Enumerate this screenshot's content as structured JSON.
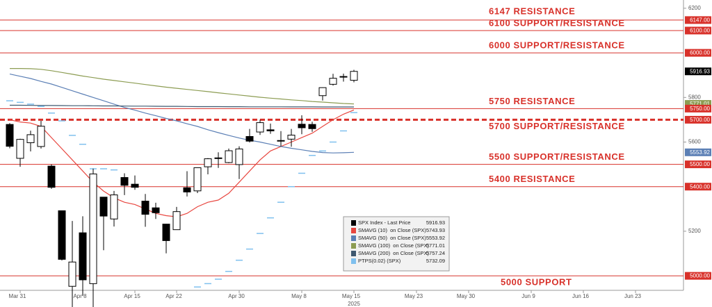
{
  "chart_data": {
    "type": "candlestick",
    "categories": [
      null,
      "Mar 31",
      null,
      null,
      null,
      null,
      null,
      "Apr 8",
      null,
      null,
      null,
      null,
      "Apr 15",
      null,
      null,
      null,
      "Apr 22",
      null,
      null,
      null,
      null,
      null,
      "Apr 30",
      null,
      null,
      null,
      null,
      null,
      "May 8",
      null,
      null,
      null,
      null,
      "May 15",
      null,
      null,
      null,
      null,
      null,
      "May 23",
      null,
      null,
      null,
      null,
      "May 30",
      null,
      null,
      null,
      null,
      null,
      "Jun 9",
      null,
      null,
      null,
      null,
      "Jun 16",
      null,
      null,
      null,
      null,
      "Jun 23",
      null,
      null,
      null,
      null
    ],
    "x_year_label": "2025",
    "ylim": [
      4935,
      6237
    ],
    "yticks": [
      5200,
      5600,
      5800,
      6200
    ],
    "candles": {
      "name": "SPX Index - Last Price",
      "color": "#000000",
      "tag": true,
      "open": [
        5679,
        5527,
        5597,
        5580,
        5492,
        5292,
        4953,
        5193,
        4965,
        5353,
        5255,
        5441,
        5411,
        5335,
        5305,
        5232,
        5207,
        5395,
        5381,
        5489,
        5529,
        5508,
        5499,
        5625,
        5645,
        5655,
        5606,
        5613,
        5680,
        5679,
        5808,
        5859,
        5894,
        5877,
        null,
        null,
        null,
        null,
        null,
        null,
        null,
        null,
        null,
        null,
        null,
        null,
        null,
        null,
        null,
        null,
        null,
        null,
        null,
        null,
        null,
        null,
        null,
        null,
        null,
        null,
        null,
        null,
        null,
        null,
        null
      ],
      "high": [
        5685,
        5615,
        5651,
        5695,
        5500,
        5292,
        5246,
        5267,
        5481,
        5353,
        5381,
        5460,
        5450,
        5367,
        5328,
        5233,
        5309,
        5469,
        5485,
        5528,
        5554,
        5571,
        5581,
        5659,
        5700,
        5683,
        5649,
        5659,
        5720,
        5691,
        5845,
        5906,
        5907,
        5924,
        null,
        null,
        null,
        null,
        null,
        null,
        null,
        null,
        null,
        null,
        null,
        null,
        null,
        null,
        null,
        null,
        null,
        null,
        null,
        null,
        null,
        null,
        null,
        null,
        null,
        null,
        null,
        null,
        null,
        null,
        null
      ],
      "low": [
        5572,
        5489,
        5558,
        5571,
        5390,
        5069,
        4835,
        4910,
        4857,
        5115,
        5221,
        5362,
        5386,
        5220,
        5255,
        5101,
        5207,
        5356,
        5371,
        5455,
        5484,
        5505,
        5434,
        5598,
        5632,
        5637,
        5580,
        5579,
        5635,
        5646,
        5786,
        5853,
        5871,
        5868,
        null,
        null,
        null,
        null,
        null,
        null,
        null,
        null,
        null,
        null,
        null,
        null,
        null,
        null,
        null,
        null,
        null,
        null,
        null,
        null,
        null,
        null,
        null,
        null,
        null,
        null,
        null,
        null,
        null,
        null,
        null
      ],
      "close": [
        5581,
        5612,
        5633,
        5671,
        5397,
        5074,
        5062,
        4982,
        5457,
        5268,
        5363,
        5406,
        5397,
        5276,
        5283,
        5158,
        5288,
        5376,
        5485,
        5525,
        5528,
        5561,
        5569,
        5604,
        5687,
        5650,
        5607,
        5631,
        5664,
        5660,
        5844,
        5886,
        5892,
        5916.93,
        null,
        null,
        null,
        null,
        null,
        null,
        null,
        null,
        null,
        null,
        null,
        null,
        null,
        null,
        null,
        null,
        null,
        null,
        null,
        null,
        null,
        null,
        null,
        null,
        null,
        null,
        null,
        null,
        null,
        null,
        null
      ]
    },
    "series": [
      {
        "name": "SMAVG (10)  on Close (SPX)",
        "color": "#e8463f",
        "values": [
          5700,
          5690,
          5685,
          5670,
          5620,
          5570,
          5520,
          5470,
          5420,
          5380,
          5350,
          5330,
          5320,
          5300,
          5280,
          5270,
          5265,
          5280,
          5310,
          5330,
          5340,
          5370,
          5420,
          5470,
          5520,
          5560,
          5580,
          5600,
          5620,
          5640,
          5670,
          5700,
          5725,
          5743.93,
          null,
          null,
          null,
          null,
          null,
          null,
          null,
          null,
          null,
          null,
          null,
          null,
          null,
          null,
          null,
          null,
          null,
          null,
          null,
          null,
          null,
          null,
          null,
          null,
          null,
          null,
          null,
          null,
          null,
          null,
          null
        ]
      },
      {
        "name": "SMAVG (50)  on Close (SPX)",
        "color": "#5b7fb5",
        "tag": true,
        "values": [
          5905,
          5895,
          5885,
          5872,
          5860,
          5845,
          5830,
          5815,
          5800,
          5785,
          5770,
          5755,
          5743,
          5730,
          5718,
          5706,
          5695,
          5682,
          5670,
          5655,
          5642,
          5630,
          5618,
          5608,
          5600,
          5590,
          5580,
          5572,
          5565,
          5558,
          5553,
          5551,
          5552,
          5553.92,
          null,
          null,
          null,
          null,
          null,
          null,
          null,
          null,
          null,
          null,
          null,
          null,
          null,
          null,
          null,
          null,
          null,
          null,
          null,
          null,
          null,
          null,
          null,
          null,
          null,
          null,
          null,
          null,
          null,
          null,
          null
        ]
      },
      {
        "name": "SMAVG (100)  on Close (SPX)",
        "color": "#8c9c52",
        "tag": true,
        "values": [
          5930,
          5930,
          5929,
          5926,
          5920,
          5912,
          5904,
          5896,
          5889,
          5882,
          5876,
          5870,
          5864,
          5858,
          5852,
          5846,
          5841,
          5836,
          5831,
          5826,
          5821,
          5816,
          5811,
          5806,
          5801,
          5797,
          5793,
          5789,
          5786,
          5782,
          5779,
          5776,
          5773,
          5771.01,
          null,
          null,
          null,
          null,
          null,
          null,
          null,
          null,
          null,
          null,
          null,
          null,
          null,
          null,
          null,
          null,
          null,
          null,
          null,
          null,
          null,
          null,
          null,
          null,
          null,
          null,
          null,
          null,
          null,
          null,
          null
        ]
      },
      {
        "name": "SMAVG (200)  on Close (SPX)",
        "color": "#3e5870",
        "values": [
          5765,
          5765,
          5764.5,
          5764,
          5764,
          5763.5,
          5763,
          5763,
          5762.5,
          5762,
          5762,
          5761.5,
          5761,
          5761,
          5760.5,
          5760,
          5760,
          5759.5,
          5759,
          5759,
          5759,
          5758.5,
          5758.5,
          5758,
          5758,
          5758,
          5757.8,
          5757.7,
          5757.6,
          5757.5,
          5757.4,
          5757.3,
          5757.3,
          5757.24,
          null,
          null,
          null,
          null,
          null,
          null,
          null,
          null,
          null,
          null,
          null,
          null,
          null,
          null,
          null,
          null,
          null,
          null,
          null,
          null,
          null,
          null,
          null,
          null,
          null,
          null,
          null,
          null,
          null,
          null,
          null
        ]
      },
      {
        "name": "PTPS(0.02) (SPX)",
        "color": "#7fc0ee",
        "style": "dash",
        "values": [
          5785,
          5778,
          5770,
          5760,
          5730,
          5695,
          5630,
          5590,
          5480,
          5480,
          5475,
          null,
          null,
          null,
          null,
          null,
          null,
          null,
          4950,
          4965,
          4985,
          5020,
          5070,
          5120,
          5190,
          5260,
          5330,
          5400,
          5460,
          5540,
          5560,
          5600,
          5650,
          5732.09,
          null,
          null,
          null,
          null,
          null,
          null,
          null,
          null,
          null,
          null,
          null,
          null,
          null,
          null,
          null,
          null,
          null,
          null,
          null,
          null,
          null,
          null,
          null,
          null,
          null,
          null,
          null,
          null,
          null,
          null,
          null
        ]
      }
    ],
    "level_color": "#d8312a",
    "levels": [
      {
        "value": 6147,
        "label": "6147 RESISTANCE",
        "tag": "6147.00"
      },
      {
        "value": 6100,
        "label": "6100 SUPPORT/RESISTANCE",
        "tag": "6100.00"
      },
      {
        "value": 6000,
        "label": "6000 SUPPORT/RESISTANCE",
        "tag": "6000.00"
      },
      {
        "value": 5750,
        "label": "5750 RESISTANCE",
        "tag": "5750.00"
      },
      {
        "value": 5700,
        "label": "5700 SUPPORT/RESISTANCE",
        "tag": "5700.00",
        "dashed": true
      },
      {
        "value": 5500,
        "label": "5500 SUPPORT/RESISTANCE",
        "tag": "5500.00"
      },
      {
        "value": 5400,
        "label": "5400 RESISTANCE",
        "tag": "5400.00"
      },
      {
        "value": 5000,
        "label": "5000 SUPPORT",
        "tag": "5000.00"
      }
    ]
  }
}
